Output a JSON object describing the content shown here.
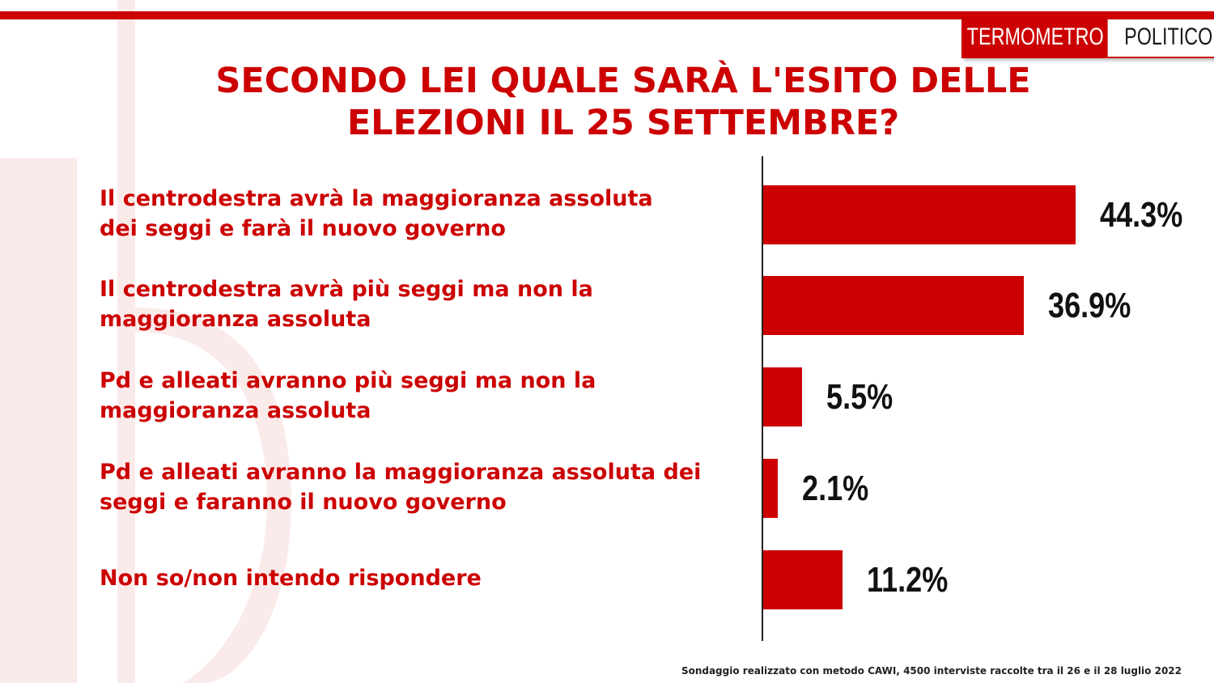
{
  "brand": {
    "logo_part1": "TERMOMETRO",
    "logo_part2": "POLITICO",
    "accent_color": "#cc0000"
  },
  "title_lines": [
    "SECONDO LEI QUALE SARÀ L'ESITO DELLE",
    "ELEZIONI IL 25 SETTEMBRE?"
  ],
  "source_note": "Sondaggio realizzato con metodo CAWI, 4500 interviste raccolte tra il 26 e il 28 luglio 2022",
  "chart_data": {
    "type": "bar",
    "orientation": "horizontal",
    "title": "SECONDO LEI QUALE SARÀ L'ESITO DELLE ELEZIONI IL 25 SETTEMBRE?",
    "categories": [
      "Il centrodestra avrà  la maggioranza assoluta\ndei seggi e farà  il nuovo governo",
      "Il centrodestra avrà  più seggi ma non la\nmaggioranza assoluta",
      "Pd e alleati avranno più seggi ma non la\nmaggioranza assoluta",
      "Pd e alleati avranno la maggioranza assoluta dei\nseggi e faranno il nuovo governo",
      "Non so/non intendo rispondere"
    ],
    "values": [
      44.3,
      36.9,
      5.5,
      2.1,
      11.2
    ],
    "value_labels": [
      "44.3%",
      "36.9%",
      "5.5%",
      "2.1%",
      "11.2%"
    ],
    "unit": "%",
    "xlim": [
      0,
      100
    ],
    "grid": false,
    "legend": "none",
    "bar_color": "#cc0000"
  }
}
